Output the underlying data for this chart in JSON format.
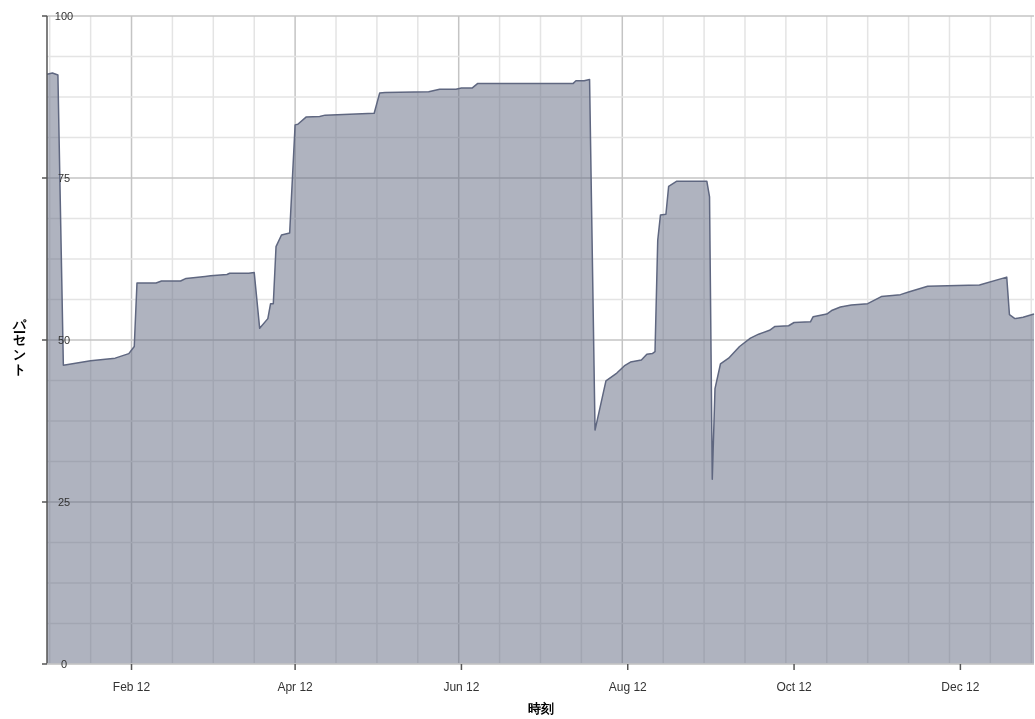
{
  "chart_data": {
    "type": "area",
    "xlabel": "時刻",
    "ylabel": "パーセント",
    "xlim": [
      "2012-01-01",
      "2012-12-28"
    ],
    "ylim": [
      0,
      100
    ],
    "yticks": [
      0,
      25,
      50,
      75,
      100
    ],
    "xticks": [
      {
        "value": "2012-02-01",
        "label": "Feb 12"
      },
      {
        "value": "2012-04-01",
        "label": "Apr 12"
      },
      {
        "value": "2012-06-01",
        "label": "Jun 12"
      },
      {
        "value": "2012-08-01",
        "label": "Aug 12"
      },
      {
        "value": "2012-10-01",
        "label": "Oct 12"
      },
      {
        "value": "2012-12-01",
        "label": "Dec 12"
      }
    ],
    "grid": true,
    "x": [
      "2012-01-01",
      "2012-01-03",
      "2012-01-05",
      "2012-01-07",
      "2012-01-17",
      "2012-01-26",
      "2012-01-31",
      "2012-02-02",
      "2012-02-03",
      "2012-02-10",
      "2012-02-12",
      "2012-02-19",
      "2012-02-21",
      "2012-02-28",
      "2012-03-01",
      "2012-03-07",
      "2012-03-08",
      "2012-03-15",
      "2012-03-17",
      "2012-03-19",
      "2012-03-22",
      "2012-03-23",
      "2012-03-24",
      "2012-03-25",
      "2012-03-27",
      "2012-03-30",
      "2012-04-01",
      "2012-04-02",
      "2012-04-05",
      "2012-04-10",
      "2012-04-12",
      "2012-04-30",
      "2012-05-02",
      "2012-05-04",
      "2012-05-20",
      "2012-05-24",
      "2012-05-30",
      "2012-06-01",
      "2012-06-05",
      "2012-06-07",
      "2012-07-12",
      "2012-07-13",
      "2012-07-16",
      "2012-07-18",
      "2012-07-20",
      "2012-07-24",
      "2012-07-28",
      "2012-07-31",
      "2012-08-02",
      "2012-08-06",
      "2012-08-08",
      "2012-08-10",
      "2012-08-11",
      "2012-08-12",
      "2012-08-13",
      "2012-08-15",
      "2012-08-16",
      "2012-08-19",
      "2012-08-30",
      "2012-08-31",
      "2012-09-01",
      "2012-09-02",
      "2012-09-04",
      "2012-09-07",
      "2012-09-11",
      "2012-09-15",
      "2012-09-18",
      "2012-09-22",
      "2012-09-24",
      "2012-09-29",
      "2012-10-01",
      "2012-10-07",
      "2012-10-08",
      "2012-10-13",
      "2012-10-15",
      "2012-10-18",
      "2012-10-22",
      "2012-10-28",
      "2012-11-02",
      "2012-11-09",
      "2012-11-12",
      "2012-11-19",
      "2012-11-30",
      "2012-12-08",
      "2012-12-18",
      "2012-12-19",
      "2012-12-21",
      "2012-12-24",
      "2012-12-28"
    ],
    "series": [
      {
        "color": "#5f6780",
        "values": [
          91.0,
          91.2,
          90.9,
          46.1,
          46.8,
          47.2,
          47.9,
          49.0,
          58.8,
          58.8,
          59.1,
          59.1,
          59.5,
          59.8,
          59.9,
          60.1,
          60.3,
          60.3,
          60.4,
          51.8,
          53.3,
          55.6,
          55.6,
          64.4,
          66.2,
          66.5,
          83.2,
          83.3,
          84.4,
          84.5,
          84.7,
          85.0,
          88.1,
          88.2,
          88.3,
          88.7,
          88.7,
          88.9,
          88.9,
          89.6,
          89.6,
          90.0,
          90.0,
          90.2,
          36.1,
          43.7,
          44.9,
          46.1,
          46.6,
          46.9,
          47.8,
          47.9,
          48.2,
          65.4,
          69.3,
          69.4,
          73.7,
          74.5,
          74.5,
          72.1,
          28.5,
          42.5,
          46.3,
          47.2,
          49.0,
          50.3,
          50.9,
          51.5,
          52.1,
          52.2,
          52.7,
          52.8,
          53.6,
          54.0,
          54.6,
          55.1,
          55.4,
          55.6,
          56.7,
          57.0,
          57.4,
          58.3,
          58.4,
          58.5,
          59.7,
          53.9,
          53.3,
          53.5,
          54.0
        ]
      }
    ]
  }
}
